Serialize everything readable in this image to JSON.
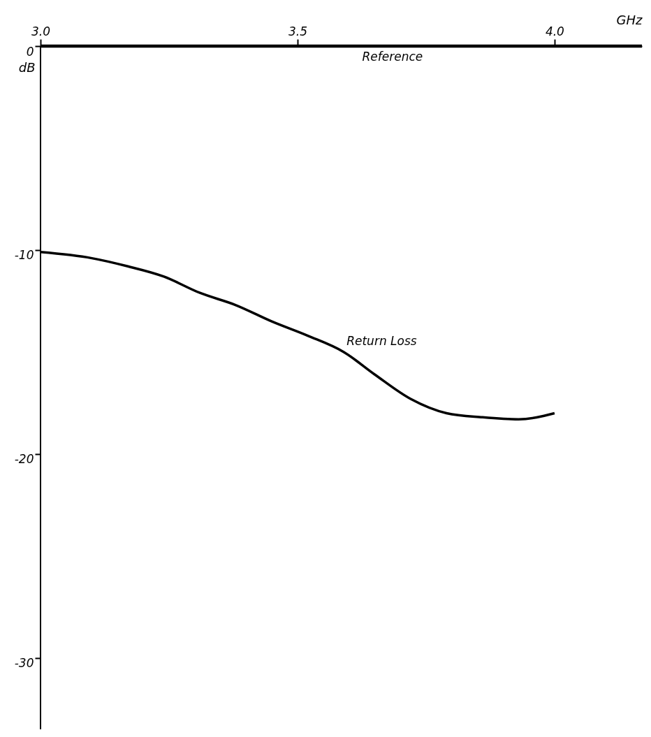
{
  "chart_data": {
    "type": "line",
    "xlabel": "GHz",
    "ylabel": "dB",
    "xlim": [
      3.0,
      4.17
    ],
    "ylim": [
      -33.5,
      0
    ],
    "xticks": [
      {
        "value": 3,
        "label": "3.0"
      },
      3.5,
      {
        "value": 4,
        "label": "4.0"
      }
    ],
    "yticks": [
      0,
      -10,
      -20,
      -30
    ],
    "grid": false,
    "legend": false,
    "marker": "none",
    "line_style": "solid",
    "ref_lines": [
      {
        "axis": "y",
        "value": 0,
        "label": "Reference",
        "color": "#000000"
      }
    ],
    "series": [
      {
        "name": "Return Loss",
        "color": "#000000",
        "x": [
          3.0,
          3.1,
          3.17,
          3.24,
          3.31,
          3.38,
          3.45,
          3.52,
          3.59,
          3.65,
          3.72,
          3.79,
          3.86,
          3.93,
          4.0
        ],
        "values": [
          -10.1,
          -10.4,
          -10.8,
          -11.3,
          -12.1,
          -12.7,
          -13.5,
          -14.2,
          -15.0,
          -16.1,
          -17.3,
          -18.0,
          -18.2,
          -18.3,
          -18.0
        ]
      }
    ]
  }
}
